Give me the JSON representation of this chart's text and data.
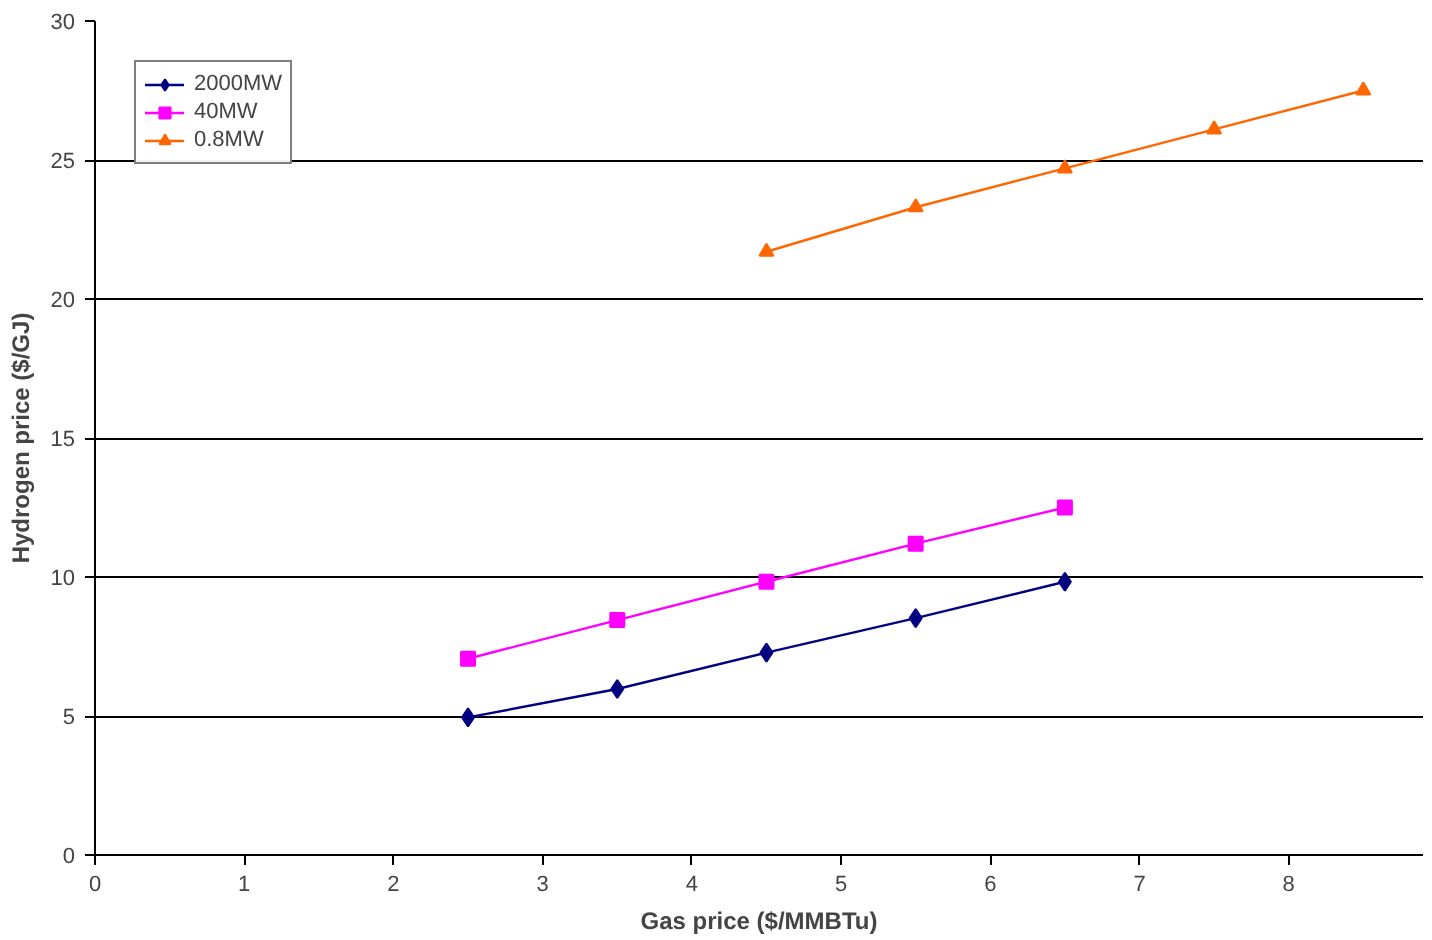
{
  "chart_data": {
    "type": "line",
    "xlabel": "Gas price ($/MMBTu)",
    "ylabel": "Hydrogen price ($/GJ)",
    "xlim": [
      0,
      8.9
    ],
    "xticks": [
      0,
      1,
      2,
      3,
      4,
      5,
      6,
      7,
      8
    ],
    "ylim": [
      0,
      30
    ],
    "yticks": [
      0,
      5,
      10,
      15,
      20,
      25,
      30
    ],
    "grid": "y",
    "legend": "top left",
    "line_style": "solid",
    "series": [
      {
        "name": "2000MW",
        "color": "#000080",
        "marker": "diamond",
        "x": [
          2.5,
          3.5,
          4.5,
          5.5,
          6.5
        ],
        "values": [
          4.95,
          5.97,
          7.28,
          8.52,
          9.83
        ]
      },
      {
        "name": "40MW",
        "color": "#ff00ff",
        "marker": "square",
        "x": [
          2.5,
          3.5,
          4.5,
          5.5,
          6.5
        ],
        "values": [
          7.06,
          8.45,
          9.83,
          11.2,
          12.5
        ]
      },
      {
        "name": "0.8MW",
        "color": "#ff6600",
        "marker": "triangle",
        "x": [
          4.5,
          5.5,
          6.5,
          7.5,
          8.5
        ],
        "values": [
          21.7,
          23.3,
          24.7,
          26.1,
          27.5
        ]
      }
    ]
  }
}
